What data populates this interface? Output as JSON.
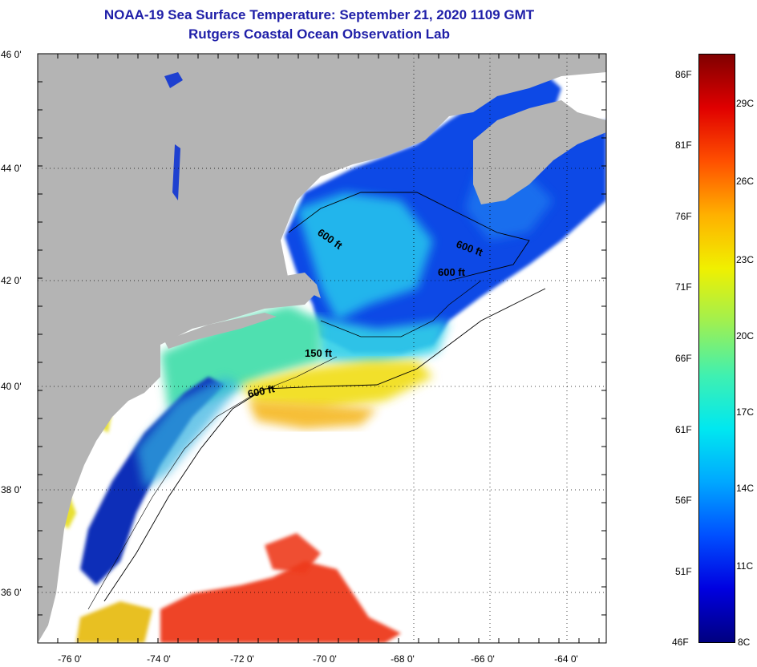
{
  "title": {
    "line1": "NOAA-19 Sea Surface Temperature:  September 21, 2020 1109 GMT",
    "line2": "Rutgers Coastal Ocean Observation Lab"
  },
  "map": {
    "lon_labels": [
      "-76 0'",
      "-74 0'",
      "-72 0'",
      "-70 0'",
      "-68 0'",
      "-66 0'",
      "-64 0'"
    ],
    "lat_labels": [
      "46 0'",
      "44 0'",
      "42 0'",
      "40 0'",
      "38 0'",
      "36 0'"
    ],
    "isobath_labels": [
      "600 ft",
      "600 ft",
      "600 ft",
      "150 ft",
      "600 ft"
    ],
    "colors": {
      "land": "#b4b4b4",
      "cloud": "#ffffff",
      "cold": "#0a2fd6",
      "cool": "#21b6ee",
      "mild": "#6ee39c",
      "warm": "#f5d21e",
      "hot": "#ee3a1a"
    }
  },
  "colorbar": {
    "fahrenheit": [
      "86F",
      "81F",
      "76F",
      "71F",
      "66F",
      "61F",
      "56F",
      "51F",
      "46F"
    ],
    "celsius": [
      "29C",
      "26C",
      "23C",
      "20C",
      "17C",
      "14C",
      "11C",
      "8C"
    ],
    "stops": [
      "#000080",
      "#0000e0",
      "#0050ff",
      "#00a8ff",
      "#00e8f0",
      "#40f0b0",
      "#a0f050",
      "#f0f000",
      "#ffb000",
      "#ff5000",
      "#e00000",
      "#800000"
    ]
  }
}
